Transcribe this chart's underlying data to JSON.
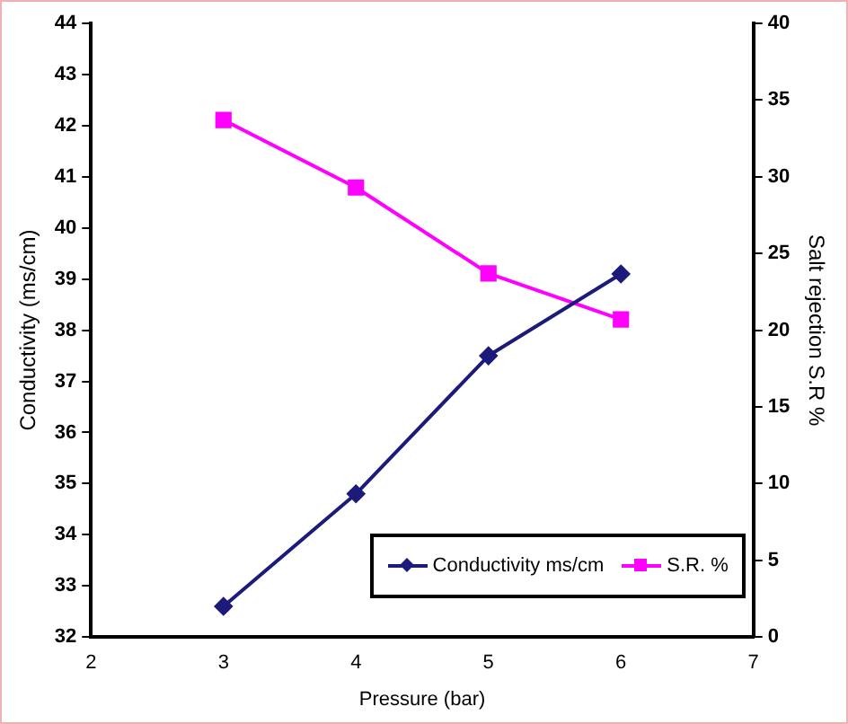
{
  "chart_data": {
    "type": "line",
    "xlabel": "Pressure (bar)",
    "ylabel": "Conductivity (ms/cm)",
    "y2label": "Salt rejection S.R %",
    "x": [
      3,
      4,
      5,
      6
    ],
    "series": [
      {
        "name": "Conductivity ms/cm",
        "color": "#1c1a7a",
        "values": [
          32.6,
          34.8,
          37.5,
          39.1
        ],
        "marker": "diamond"
      },
      {
        "name": "S.R. %",
        "color": "#ff00ff",
        "values": [
          33.7,
          29.3,
          23.7,
          20.7
        ],
        "axis": "y2",
        "marker": "square"
      }
    ],
    "xlim": [
      2,
      7
    ],
    "xticks": [
      2,
      3,
      4,
      5,
      6,
      7
    ],
    "ylim": [
      32,
      44
    ],
    "yticks": [
      32,
      33,
      34,
      35,
      36,
      37,
      38,
      39,
      40,
      41,
      42,
      43,
      44
    ],
    "y2lim": [
      0,
      40
    ],
    "y2ticks": [
      0,
      5,
      10,
      15,
      20,
      25,
      30,
      35,
      40
    ],
    "grid": false,
    "legend": "bottom right",
    "line_style": "solid"
  }
}
